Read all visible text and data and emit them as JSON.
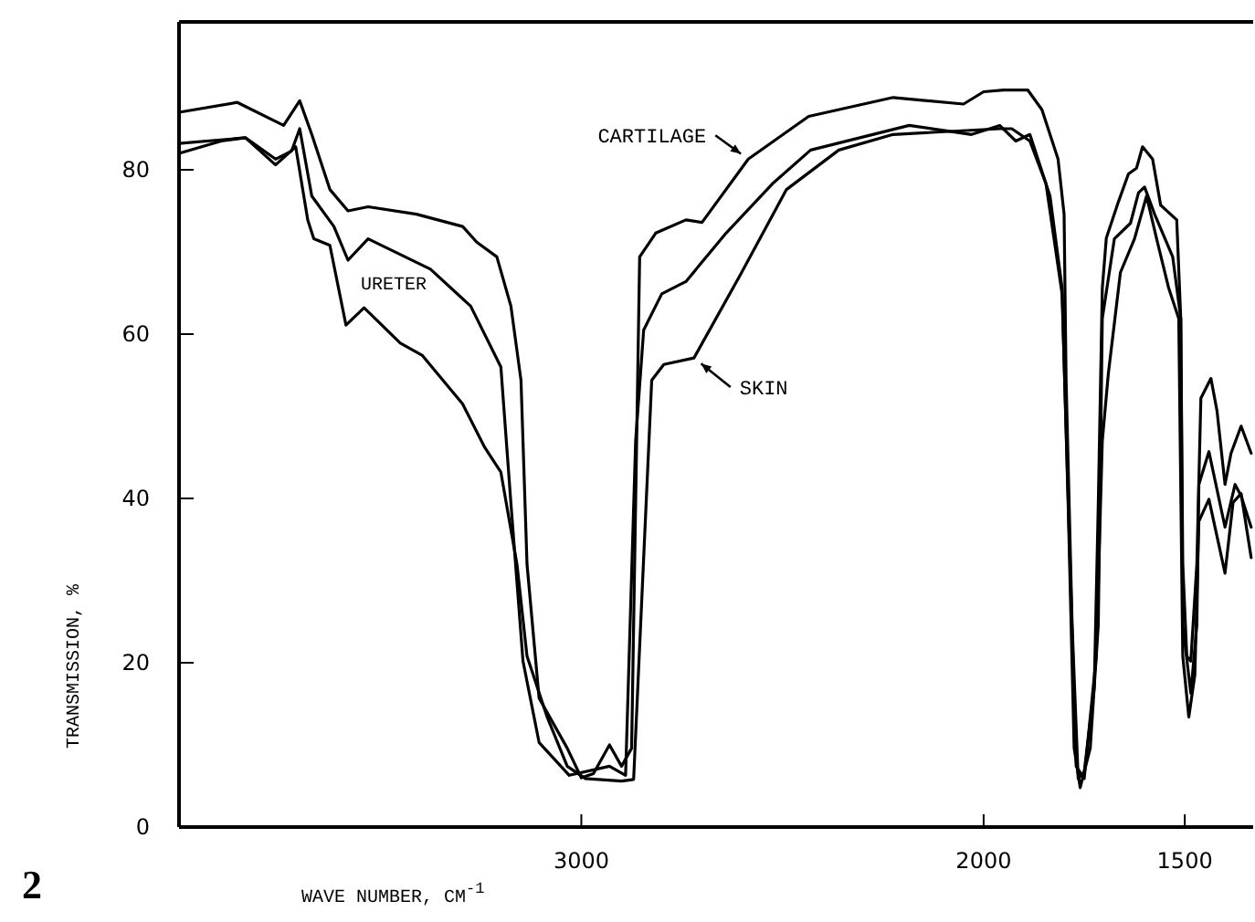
{
  "chart_data": {
    "type": "line",
    "xlabel": "WAVE NUMBER, CM$^{-1}$",
    "ylabel": "TRANSMISSION, %",
    "annotations": [
      "2"
    ],
    "xlim": [
      4000,
      1330
    ],
    "xticks": [
      3000,
      2000,
      1500
    ],
    "ylim": [
      0,
      98
    ],
    "yticks": [
      0,
      20,
      40,
      60,
      80
    ],
    "series": [
      {
        "name": "CARTILAGE",
        "color": "#000000",
        "x": [
          4000,
          3855,
          3740,
          3700,
          3670,
          3625,
          3580,
          3530,
          3410,
          3295,
          3260,
          3210,
          3175,
          3150,
          3135,
          3105,
          3035,
          3000,
          2970,
          2930,
          2900,
          2875,
          2855,
          2815,
          2740,
          2700,
          2585,
          2435,
          2225,
          2050,
          2000,
          1950,
          1890,
          1855,
          1815,
          1800,
          1795,
          1780,
          1765,
          1750,
          1725,
          1715,
          1705,
          1695,
          1665,
          1640,
          1620,
          1605,
          1580,
          1560,
          1520,
          1510,
          1505,
          1495,
          1485,
          1470,
          1460,
          1435,
          1420,
          1400,
          1385,
          1360,
          1335
        ],
        "values": [
          87,
          88.2,
          85.4,
          88.4,
          84.3,
          77.6,
          75,
          75.5,
          74.6,
          73.1,
          71.2,
          69.4,
          63.4,
          54.4,
          32,
          15.7,
          9.6,
          6,
          6.5,
          10,
          7.4,
          9.6,
          69.4,
          72.3,
          73.9,
          73.6,
          81.3,
          86.5,
          88.8,
          88,
          89.5,
          89.7,
          89.7,
          87.3,
          81.3,
          74.6,
          54.4,
          24.6,
          5.9,
          6.7,
          17,
          39.4,
          65.6,
          71.7,
          76.1,
          79.5,
          80.2,
          82.8,
          81.3,
          75.7,
          73.9,
          61.9,
          32,
          20.8,
          20.2,
          32,
          52.2,
          54.6,
          50.7,
          41.7,
          45.5,
          48.8,
          45.5
        ]
      },
      {
        "name": "URETER",
        "color": "#000000",
        "x": [
          4000,
          3835,
          3760,
          3720,
          3700,
          3670,
          3615,
          3580,
          3530,
          3375,
          3275,
          3200,
          3175,
          3145,
          3105,
          3030,
          2930,
          2890,
          2865,
          2845,
          2800,
          2740,
          2640,
          2525,
          2430,
          2185,
          2030,
          1960,
          1920,
          1885,
          1835,
          1805,
          1790,
          1775,
          1760,
          1735,
          1715,
          1705,
          1675,
          1635,
          1615,
          1600,
          1575,
          1530,
          1510,
          1505,
          1485,
          1470,
          1465,
          1440,
          1400,
          1375,
          1360,
          1335
        ],
        "values": [
          83.2,
          83.9,
          81.3,
          82.3,
          85,
          76.8,
          73.1,
          69,
          71.6,
          67.9,
          63.4,
          56,
          39.4,
          20.2,
          10.3,
          6.3,
          7.4,
          6.3,
          47,
          60.5,
          64.9,
          66.4,
          72.3,
          78.3,
          82.4,
          85.4,
          84.3,
          85.4,
          83.5,
          84.3,
          76.8,
          65.6,
          39.5,
          9.6,
          4.8,
          9.6,
          24.6,
          61.9,
          71.6,
          73.5,
          77.2,
          77.9,
          74.6,
          69.4,
          61.9,
          24.6,
          16.3,
          24.6,
          41.7,
          45.7,
          36.5,
          41.7,
          40.3,
          36.5
        ]
      },
      {
        "name": "SKIN",
        "color": "#000000",
        "x": [
          4000,
          3895,
          3835,
          3760,
          3710,
          3680,
          3665,
          3625,
          3585,
          3540,
          3450,
          3395,
          3295,
          3240,
          3200,
          3160,
          3135,
          3085,
          3035,
          2990,
          2900,
          2870,
          2825,
          2795,
          2720,
          2605,
          2490,
          2360,
          2225,
          1960,
          1930,
          1885,
          1845,
          1805,
          1785,
          1770,
          1750,
          1720,
          1705,
          1690,
          1660,
          1625,
          1595,
          1570,
          1540,
          1515,
          1505,
          1490,
          1475,
          1465,
          1440,
          1415,
          1400,
          1380,
          1360,
          1335
        ],
        "values": [
          82,
          83.5,
          83.9,
          80.6,
          82.8,
          73.9,
          71.6,
          70.8,
          61.1,
          63.2,
          58.9,
          57.4,
          51.5,
          46.2,
          43.2,
          32,
          20.8,
          13.4,
          7.4,
          5.9,
          5.6,
          5.8,
          54.4,
          56.3,
          57.1,
          67.2,
          77.6,
          82.4,
          84.3,
          85,
          85,
          83.5,
          78.3,
          64.9,
          32,
          7.4,
          5.9,
          20.8,
          47,
          55.2,
          67.5,
          71.6,
          76.8,
          71.6,
          65.6,
          61.9,
          20.8,
          13.4,
          18.5,
          37.2,
          39.9,
          34.3,
          30.9,
          39.5,
          40.6,
          32.8
        ]
      }
    ]
  }
}
